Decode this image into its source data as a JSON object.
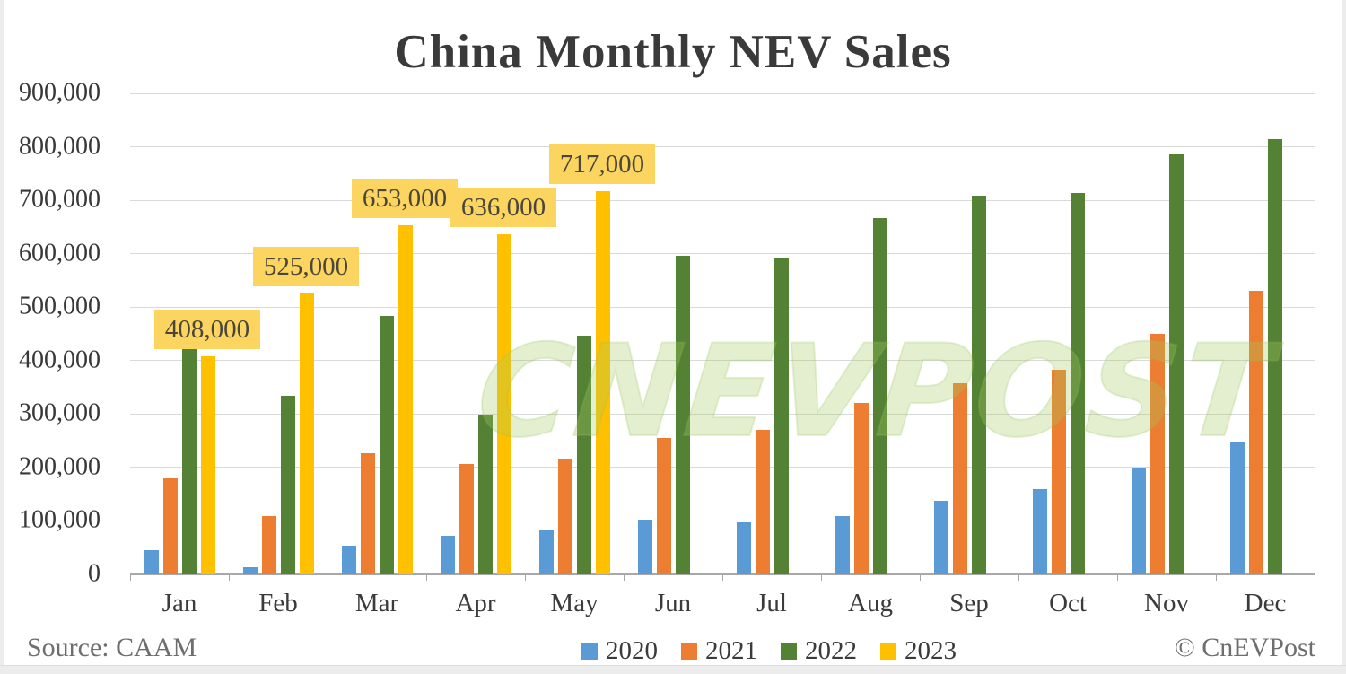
{
  "title": "China Monthly NEV Sales",
  "watermark": "CNEVPOST",
  "footer": {
    "source": "Source: CAAM",
    "copyright": "© CnEVPost"
  },
  "colors": {
    "series_2020": "#5B9BD5",
    "series_2021": "#ED7D31",
    "series_2022": "#548235",
    "series_2023": "#FFC000",
    "data_label_bg": "#FBD55F",
    "gridline": "#D9D9D9",
    "axis_line": "#A8A8A8",
    "title_text": "#3A3A3A",
    "watermark_green": "#A3C95F"
  },
  "chart_data": {
    "type": "bar",
    "title": "China Monthly NEV Sales",
    "xlabel": "",
    "ylabel": "",
    "ylim": [
      0,
      900000
    ],
    "ytick_step": 100000,
    "yticks": [
      "0",
      "100,000",
      "200,000",
      "300,000",
      "400,000",
      "500,000",
      "600,000",
      "700,000",
      "800,000",
      "900,000"
    ],
    "grid": "horizontal",
    "legend_position": "bottom-center",
    "categories": [
      "Jan",
      "Feb",
      "Mar",
      "Apr",
      "May",
      "Jun",
      "Jul",
      "Aug",
      "Sep",
      "Oct",
      "Nov",
      "Dec"
    ],
    "series": [
      {
        "name": "2020",
        "color": "#5B9BD5",
        "values": [
          46000,
          13000,
          53000,
          72000,
          82000,
          103000,
          98000,
          109000,
          138000,
          160000,
          200000,
          248000
        ]
      },
      {
        "name": "2021",
        "color": "#ED7D31",
        "values": [
          179000,
          110000,
          226000,
          206000,
          217000,
          256000,
          271000,
          321000,
          357000,
          383000,
          450000,
          531000
        ]
      },
      {
        "name": "2022",
        "color": "#548235",
        "values": [
          431000,
          334000,
          484000,
          299000,
          447000,
          596000,
          593000,
          666000,
          708000,
          714000,
          786000,
          814000
        ]
      },
      {
        "name": "2023",
        "color": "#FFC000",
        "values": [
          408000,
          525000,
          653000,
          636000,
          717000,
          null,
          null,
          null,
          null,
          null,
          null,
          null
        ],
        "data_labels": [
          "408,000",
          "525,000",
          "653,000",
          "636,000",
          "717,000"
        ]
      }
    ]
  }
}
